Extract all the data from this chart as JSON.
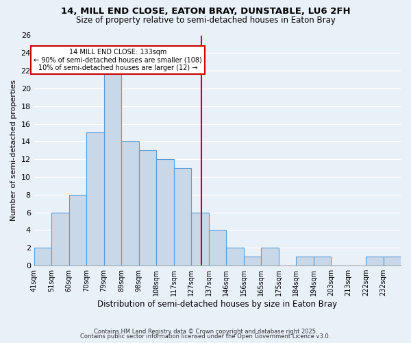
{
  "title_line1": "14, MILL END CLOSE, EATON BRAY, DUNSTABLE, LU6 2FH",
  "title_line2": "Size of property relative to semi-detached houses in Eaton Bray",
  "xlabel": "Distribution of semi-detached houses by size in Eaton Bray",
  "ylabel": "Number of semi-detached properties",
  "bin_labels": [
    "41sqm",
    "51sqm",
    "60sqm",
    "70sqm",
    "79sqm",
    "89sqm",
    "98sqm",
    "108sqm",
    "117sqm",
    "127sqm",
    "137sqm",
    "146sqm",
    "156sqm",
    "165sqm",
    "175sqm",
    "184sqm",
    "194sqm",
    "203sqm",
    "213sqm",
    "222sqm",
    "232sqm"
  ],
  "counts": [
    2,
    6,
    8,
    15,
    22,
    14,
    13,
    12,
    11,
    6,
    4,
    2,
    1,
    2,
    0,
    1,
    1,
    0,
    0,
    1,
    1
  ],
  "bar_color": "#c8d8e8",
  "bar_edge_color": "#5b9bd5",
  "vline_index": 9.6,
  "vline_color": "#cc0000",
  "annotation_title": "14 MILL END CLOSE: 133sqm",
  "annotation_line1": "← 90% of semi-detached houses are smaller (108)",
  "annotation_line2": "10% of semi-detached houses are larger (12) →",
  "annotation_box_edge_color": "#cc0000",
  "annotation_box_face_color": "#ffffff",
  "ylim": [
    0,
    26
  ],
  "yticks": [
    0,
    2,
    4,
    6,
    8,
    10,
    12,
    14,
    16,
    18,
    20,
    22,
    24,
    26
  ],
  "background_color": "#e8f0f8",
  "grid_color": "#ffffff",
  "footer_line1": "Contains HM Land Registry data © Crown copyright and database right 2025.",
  "footer_line2": "Contains public sector information licensed under the Open Government Licence v3.0."
}
